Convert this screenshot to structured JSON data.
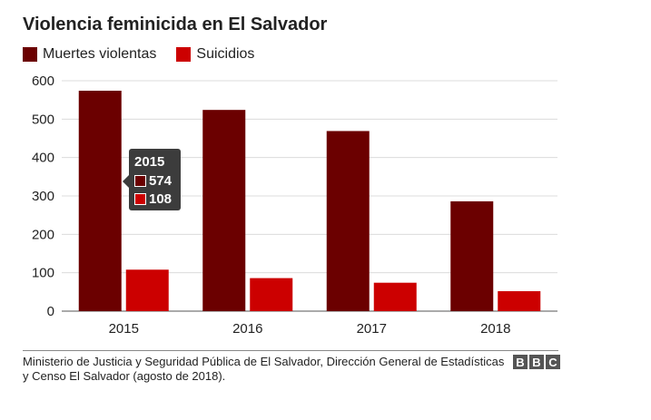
{
  "title": "Violencia feminicida en El Salvador",
  "legend": [
    {
      "label": "Muertes violentas",
      "color": "#6b0000"
    },
    {
      "label": "Suicidios",
      "color": "#cc0000"
    }
  ],
  "tooltip": {
    "year": "2015",
    "violent": "574",
    "suicides": "108"
  },
  "source": "Ministerio de Justicia y Seguridad Pública de El Salvador, Dirección General de Estadísticas y Censo El Salvador (agosto de 2018).",
  "brand": [
    "B",
    "B",
    "C"
  ],
  "chart_data": {
    "type": "bar",
    "title": "Violencia feminicida en El Salvador",
    "categories": [
      "2015",
      "2016",
      "2017",
      "2018"
    ],
    "series": [
      {
        "name": "Muertes violentas",
        "values": [
          574,
          524,
          469,
          286
        ],
        "color": "#6b0000"
      },
      {
        "name": "Suicidios",
        "values": [
          108,
          86,
          74,
          52
        ],
        "color": "#cc0000"
      }
    ],
    "yticks": [
      "0",
      "100",
      "200",
      "300",
      "400",
      "500",
      "600"
    ],
    "ylim": [
      0,
      600
    ],
    "xlabel": "",
    "ylabel": "",
    "legend": "top-left",
    "grid": true
  }
}
